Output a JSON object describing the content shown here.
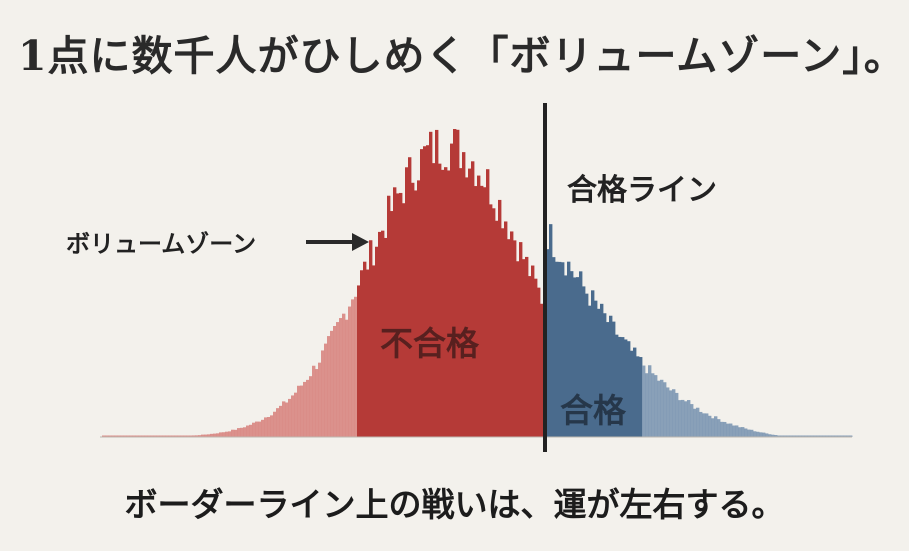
{
  "title": "1点に数千人がひしめく「ボリュームゾーン」。",
  "caption": "ボーダーライン上の戦いは、運が左右する。",
  "labels": {
    "volume_zone": "ボリュームゾーン",
    "pass_line": "合格ライン",
    "fail": "不合格",
    "pass": "合格"
  },
  "colors": {
    "fail_dark": "#b53a37",
    "fail_light": "#d88682",
    "pass": "#4a6b8d",
    "pass_light": "#7d97b3",
    "line": "#222222",
    "text": "#2a2a2a"
  }
}
